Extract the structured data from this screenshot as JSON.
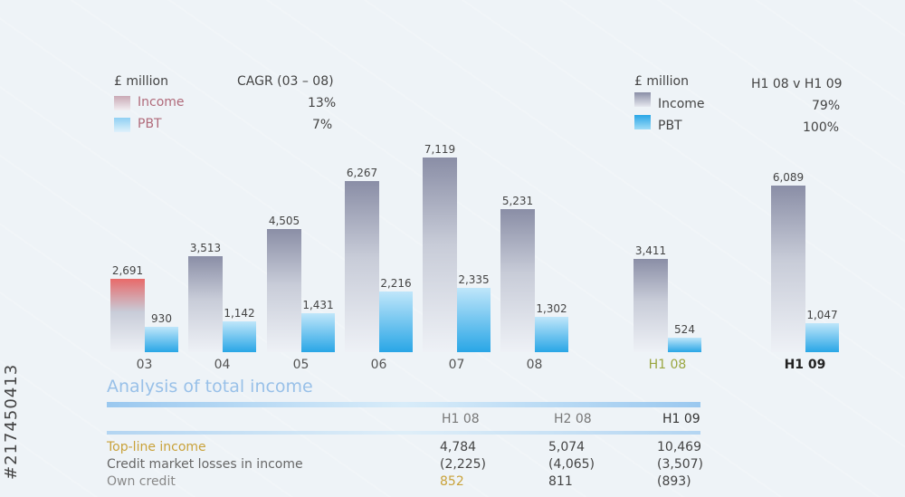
{
  "legend_left": {
    "unit": "£ million",
    "metric_header": "CAGR (03 – 08)",
    "items": [
      {
        "name": "Income",
        "value": "13%"
      },
      {
        "name": "PBT",
        "value": "7%"
      }
    ]
  },
  "legend_right": {
    "unit": "£ million",
    "metric_header": "H1 08 v H1 09",
    "items": [
      {
        "name": "Income",
        "value": "79%"
      },
      {
        "name": "PBT",
        "value": "100%"
      }
    ]
  },
  "chart_data": {
    "type": "bar",
    "categories": [
      "03",
      "04",
      "05",
      "06",
      "07",
      "08",
      "H1 08",
      "H1 09"
    ],
    "series": [
      {
        "name": "Income",
        "values": [
          2691,
          3513,
          4505,
          6267,
          7119,
          5231,
          3411,
          6089
        ],
        "labels": [
          "2,691",
          "3,513",
          "4,505",
          "6,267",
          "7,119",
          "5,231",
          "3,411",
          "6,089"
        ]
      },
      {
        "name": "PBT",
        "values": [
          930,
          1142,
          1431,
          2216,
          2335,
          1302,
          524,
          1047
        ],
        "labels": [
          "930",
          "1,142",
          "1,431",
          "2,216",
          "2,335",
          "1,302",
          "524",
          "1,047"
        ]
      }
    ],
    "ylim": [
      0,
      8000
    ],
    "colors": {
      "income": "#8a8ea6",
      "pbt": "#29a6e6",
      "income_first": "#e86a6a"
    }
  },
  "analysis": {
    "title": "Analysis of total income",
    "columns": [
      "H1 08",
      "H2 08",
      "H1 09"
    ],
    "rows": [
      {
        "label": "Top-line income",
        "values": [
          "4,784",
          "5,074",
          "10,469"
        ]
      },
      {
        "label": "Credit market losses in income",
        "values": [
          "(2,225)",
          "(4,065)",
          "(3,507)"
        ]
      },
      {
        "label": "Own credit",
        "values": [
          "852",
          "811",
          "(893)"
        ]
      }
    ]
  },
  "watermark": {
    "text": "Adobe Stock",
    "id": "#217450413"
  }
}
